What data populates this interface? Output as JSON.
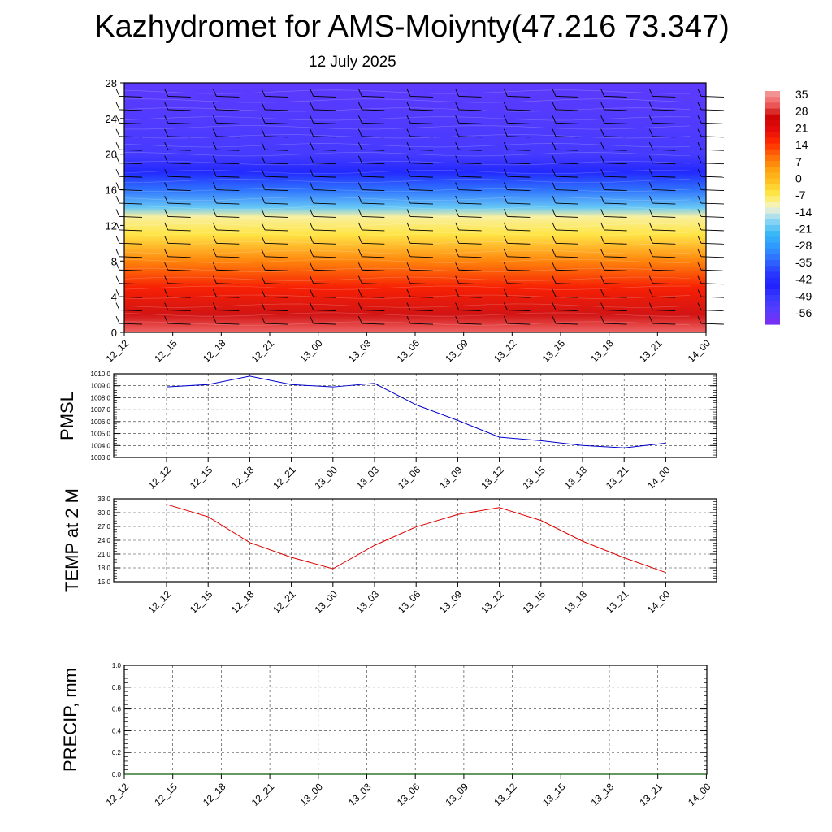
{
  "header": {
    "title": "Kazhydromet for AMS-Moiynty(47.216 73.347)",
    "subtitle": "12 July 2025"
  },
  "colors": {
    "background": "#ffffff",
    "pmsl_line": "#0000cc",
    "temp_line": "#dd0000",
    "precip_line": "#006400",
    "colorbar": [
      "#7b2cf0",
      "#5a3cff",
      "#3b3bff",
      "#2020ff",
      "#2a3cff",
      "#2f6dff",
      "#2f99ff",
      "#39b9f5",
      "#8fd6f5",
      "#f4f4d2",
      "#ffe94a",
      "#ffc221",
      "#ff9f10",
      "#ff6a08",
      "#ff2a00",
      "#e60b0b",
      "#cc0505",
      "#f06060",
      "#f2a0a0"
    ]
  },
  "chart_data": [
    {
      "type": "heatmap",
      "title": "",
      "xlabel": "",
      "ylabel": "",
      "x_ticks": [
        "12_12",
        "12_15",
        "12_18",
        "12_21",
        "13_00",
        "13_03",
        "13_06",
        "13_09",
        "13_12",
        "13_15",
        "13_18",
        "13_21",
        "14_00"
      ],
      "y_ticks": [
        "0",
        "4",
        "8",
        "12",
        "16",
        "20",
        "24",
        "28"
      ],
      "ylim": [
        0,
        28
      ],
      "overlay": "wind barbs",
      "colorbar_labels": [
        "35",
        "28",
        "21",
        "14",
        "7",
        "0",
        "-7",
        "-14",
        "-21",
        "-28",
        "-35",
        "-42",
        "-49",
        "-56"
      ],
      "zlim": [
        -63,
        35
      ],
      "profile": [
        {
          "height": 0,
          "value": 30
        },
        {
          "height": 2,
          "value": 25
        },
        {
          "height": 5,
          "value": 15
        },
        {
          "height": 8,
          "value": 5
        },
        {
          "height": 11,
          "value": -8
        },
        {
          "height": 13,
          "value": -12
        },
        {
          "height": 14,
          "value": -22
        },
        {
          "height": 16,
          "value": -35
        },
        {
          "height": 18,
          "value": -45
        },
        {
          "height": 20,
          "value": -54
        },
        {
          "height": 28,
          "value": -58
        }
      ]
    },
    {
      "type": "line",
      "title": "",
      "xlabel": "",
      "ylabel": "PMSL",
      "x_ticks": [
        "12_12",
        "12_15",
        "12_18",
        "12_21",
        "13_00",
        "13_03",
        "13_06",
        "13_09",
        "13_12",
        "13_15",
        "13_18",
        "13_21",
        "14_00"
      ],
      "y_ticks": [
        "1003.0",
        "1004.0",
        "1005.0",
        "1006.0",
        "1007.0",
        "1008.0",
        "1009.0",
        "1010.0"
      ],
      "ylim": [
        1003,
        1010
      ],
      "grid": true,
      "series": [
        {
          "values": [
            1008.9,
            1009.1,
            1009.8,
            1009.1,
            1008.9,
            1009.2,
            1007.4,
            1006.1,
            1004.7,
            1004.4,
            1004.0,
            1003.8,
            1004.2
          ]
        }
      ]
    },
    {
      "type": "line",
      "title": "",
      "xlabel": "",
      "ylabel": "TEMP at 2 M",
      "x_ticks": [
        "12_12",
        "12_15",
        "12_18",
        "12_21",
        "13_00",
        "13_03",
        "13_06",
        "13_09",
        "13_12",
        "13_15",
        "13_18",
        "13_21",
        "14_00"
      ],
      "y_ticks": [
        "15.0",
        "18.0",
        "21.0",
        "24.0",
        "27.0",
        "30.0",
        "33.0"
      ],
      "ylim": [
        15,
        33
      ],
      "grid": true,
      "series": [
        {
          "values": [
            31.8,
            29.1,
            23.5,
            20.3,
            17.8,
            22.9,
            26.9,
            29.6,
            31.1,
            28.3,
            23.8,
            20.2,
            17.0
          ]
        }
      ]
    },
    {
      "type": "line",
      "title": "",
      "xlabel": "",
      "ylabel": "PRECIP, mm",
      "x_ticks": [
        "12_12",
        "12_15",
        "12_18",
        "12_21",
        "13_00",
        "13_03",
        "13_06",
        "13_09",
        "13_12",
        "13_15",
        "13_18",
        "13_21",
        "14_00"
      ],
      "y_ticks": [
        "0.0",
        "0.2",
        "0.4",
        "0.6",
        "0.8",
        "1.0"
      ],
      "ylim": [
        0,
        1
      ],
      "grid": true,
      "series": [
        {
          "values": [
            0,
            0,
            0,
            0,
            0,
            0,
            0,
            0,
            0,
            0,
            0,
            0,
            0
          ]
        }
      ]
    }
  ]
}
